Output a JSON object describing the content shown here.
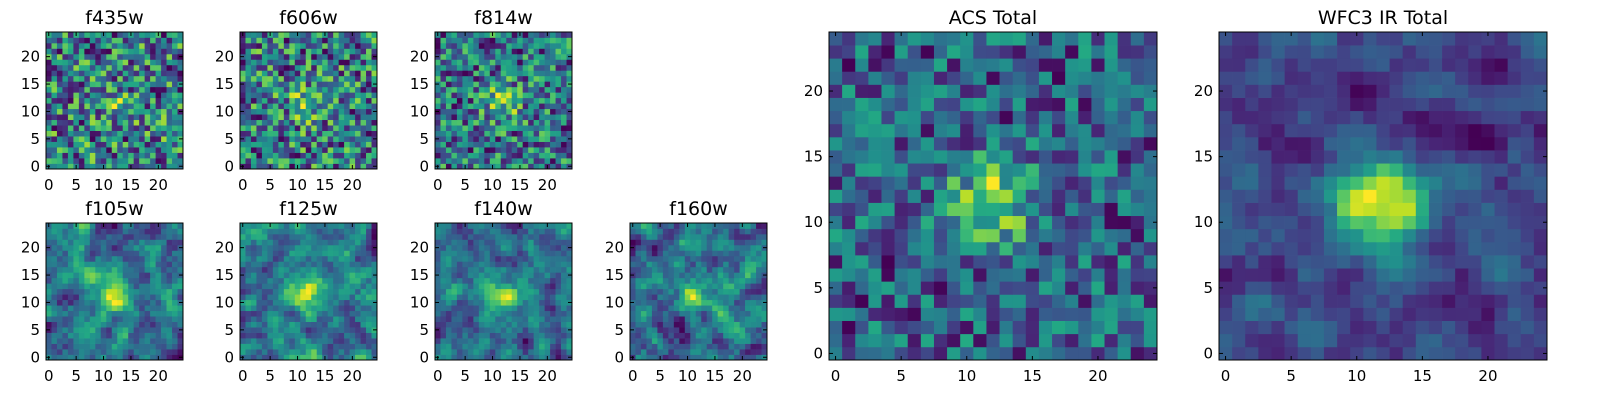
{
  "chart_data": {
    "type": "heatmap",
    "colormap": "viridis",
    "panels": [
      {
        "id": "f435w",
        "title": "f435w",
        "size": 25,
        "x_ticks": [
          0,
          5,
          10,
          15,
          20
        ],
        "y_ticks": [
          0,
          5,
          10,
          15,
          20
        ],
        "smooth": 0,
        "noise": 1.0,
        "blob": 0.2,
        "seed": 11
      },
      {
        "id": "f606w",
        "title": "f606w",
        "size": 25,
        "x_ticks": [
          0,
          5,
          10,
          15,
          20
        ],
        "y_ticks": [
          0,
          5,
          10,
          15,
          20
        ],
        "smooth": 0,
        "noise": 1.0,
        "blob": 0.35,
        "seed": 23
      },
      {
        "id": "f814w",
        "title": "f814w",
        "size": 25,
        "x_ticks": [
          0,
          5,
          10,
          15,
          20
        ],
        "y_ticks": [
          0,
          5,
          10,
          15,
          20
        ],
        "smooth": 0,
        "noise": 1.0,
        "blob": 0.45,
        "seed": 37
      },
      {
        "id": "f105w",
        "title": "f105w",
        "size": 25,
        "x_ticks": [
          0,
          5,
          10,
          15,
          20
        ],
        "y_ticks": [
          0,
          5,
          10,
          15,
          20
        ],
        "smooth": 1,
        "noise": 1.0,
        "blob": 0.5,
        "seed": 41
      },
      {
        "id": "f125w",
        "title": "f125w",
        "size": 25,
        "x_ticks": [
          0,
          5,
          10,
          15,
          20
        ],
        "y_ticks": [
          0,
          5,
          10,
          15,
          20
        ],
        "smooth": 1,
        "noise": 1.0,
        "blob": 0.35,
        "seed": 53
      },
      {
        "id": "f140w",
        "title": "f140w",
        "size": 25,
        "x_ticks": [
          0,
          5,
          10,
          15,
          20
        ],
        "y_ticks": [
          0,
          5,
          10,
          15,
          20
        ],
        "smooth": 1,
        "noise": 1.0,
        "blob": 0.35,
        "seed": 67
      },
      {
        "id": "f160w",
        "title": "f160w",
        "size": 25,
        "x_ticks": [
          0,
          5,
          10,
          15,
          20
        ],
        "y_ticks": [
          0,
          5,
          10,
          15,
          20
        ],
        "smooth": 1,
        "noise": 1.0,
        "blob": 0.35,
        "seed": 79
      },
      {
        "id": "acs-total",
        "title": "ACS Total",
        "size": 25,
        "x_ticks": [
          0,
          5,
          10,
          15,
          20
        ],
        "y_ticks": [
          0,
          5,
          10,
          15,
          20
        ],
        "smooth": 0,
        "noise": 0.9,
        "blob": 0.7,
        "seed": 83
      },
      {
        "id": "wfc3-ir-total",
        "title": "WFC3 IR Total",
        "size": 25,
        "x_ticks": [
          0,
          5,
          10,
          15,
          20
        ],
        "y_ticks": [
          0,
          5,
          10,
          15,
          20
        ],
        "smooth": 1,
        "noise": 0.8,
        "blob": 0.9,
        "seed": 97
      }
    ]
  }
}
